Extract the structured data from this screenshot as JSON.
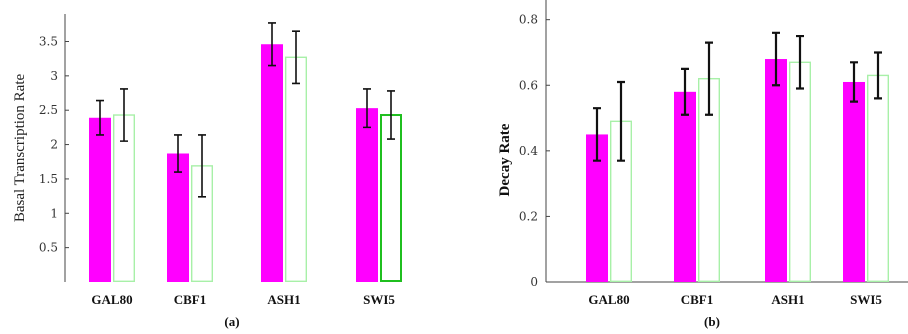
{
  "colors": {
    "series1": "#ff00ff",
    "series2_edge": "#a8f0a8",
    "series2_fill": "#ffffff",
    "highlight_edge": "#1fbf1f",
    "error": "#111111",
    "axis": "#444444"
  },
  "chart_data": [
    {
      "type": "bar",
      "panel_label": "(a)",
      "categories": [
        "GAL80",
        "CBF1",
        "ASH1",
        "SWI5"
      ],
      "ylabel": "Basal Transcription Rate",
      "xlabel": "",
      "ylim": [
        0,
        3.9
      ],
      "yticks": [
        0.5,
        1,
        1.5,
        2,
        2.5,
        3,
        3.5
      ],
      "ytick_labels": [
        "0.5",
        "1",
        "1.5",
        "2",
        "2.5",
        "3",
        "3.5"
      ],
      "series": [
        {
          "values": [
            2.39,
            1.87,
            3.46,
            2.53
          ],
          "err": [
            0.25,
            0.27,
            0.31,
            0.28
          ]
        },
        {
          "values": [
            2.43,
            1.69,
            3.27,
            2.43
          ],
          "err": [
            0.38,
            0.45,
            0.38,
            0.35
          ]
        }
      ],
      "grid": false,
      "legend": "none"
    },
    {
      "type": "bar",
      "panel_label": "(b)",
      "categories": [
        "GAL80",
        "CBF1",
        "ASH1",
        "SWI5"
      ],
      "ylabel": "Decay Rate",
      "xlabel": "",
      "ylim": [
        0,
        0.86
      ],
      "yticks": [
        0,
        0.2,
        0.4,
        0.6,
        0.8
      ],
      "ytick_labels": [
        "0",
        "0.2",
        "0.4",
        "0.6",
        "0.8"
      ],
      "series": [
        {
          "values": [
            0.45,
            0.58,
            0.68,
            0.61
          ],
          "err": [
            0.08,
            0.07,
            0.08,
            0.06
          ]
        },
        {
          "values": [
            0.49,
            0.62,
            0.67,
            0.63
          ],
          "err": [
            0.12,
            0.11,
            0.08,
            0.07
          ]
        }
      ],
      "grid": false,
      "legend": "none"
    }
  ]
}
